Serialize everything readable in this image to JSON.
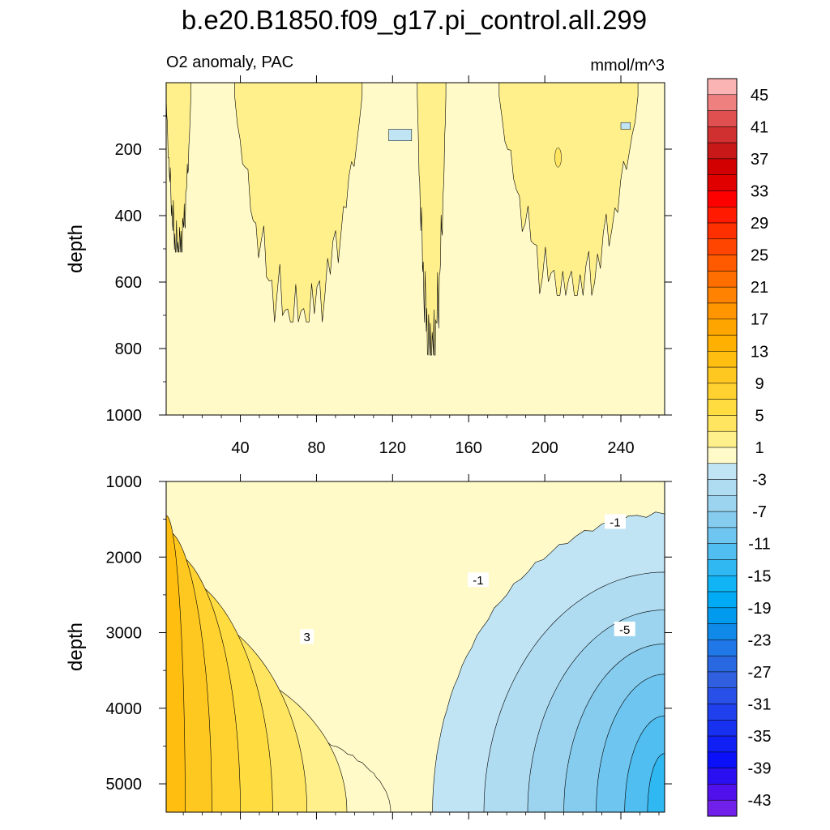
{
  "chart_data": {
    "type": "contour",
    "title": "b.e20.B1850.f09_g17.pi_control.all.299",
    "variable_label": "O2 anomaly, PAC",
    "units_label": "mmol/m^3",
    "colorbar": {
      "tick_labels": [
        "45",
        "41",
        "37",
        "33",
        "29",
        "25",
        "21",
        "17",
        "13",
        "9",
        "5",
        "1",
        "-3",
        "-7",
        "-11",
        "-15",
        "-19",
        "-23",
        "-27",
        "-31",
        "-35",
        "-39",
        "-43"
      ],
      "levels_top_to_bottom": [
        47,
        45,
        43,
        41,
        39,
        37,
        35,
        33,
        31,
        29,
        27,
        25,
        23,
        21,
        19,
        17,
        15,
        13,
        11,
        9,
        7,
        5,
        3,
        1,
        -1,
        -3,
        -5,
        -7,
        -9,
        -11,
        -13,
        -15,
        -17,
        -19,
        -21,
        -23,
        -25,
        -27,
        -29,
        -31,
        -33,
        -35,
        -37,
        -39,
        -41,
        -43,
        -45
      ],
      "colors": [
        "#fbb4b4",
        "#ee8080",
        "#e05050",
        "#d03030",
        "#c81818",
        "#d20000",
        "#e00000",
        "#ff0000",
        "#ff1a00",
        "#ff3000",
        "#ff4500",
        "#ff5a00",
        "#ff6e00",
        "#ff8200",
        "#ff9600",
        "#ffa500",
        "#ffb000",
        "#ffbe10",
        "#ffc820",
        "#ffd230",
        "#ffdc40",
        "#ffe560",
        "#fff08c",
        "#fffac8",
        "#c0e4f4",
        "#b0dcf2",
        "#9cd4f0",
        "#86ccef",
        "#6ec6f0",
        "#50bef0",
        "#30b8f2",
        "#10b4f5",
        "#00aaf5",
        "#009aee",
        "#108ae8",
        "#2078e8",
        "#2868e0",
        "#3060e0",
        "#2850e8",
        "#2040ee",
        "#1830f0",
        "#1020f5",
        "#0a10f8",
        "#2a10f0",
        "#5010ec",
        "#7020e8"
      ]
    },
    "upper_panel": {
      "ylabel": "depth",
      "xlim": [
        1,
        263
      ],
      "ylim": [
        0,
        1000
      ],
      "x_ticks": [
        40,
        80,
        120,
        160,
        200,
        240
      ],
      "y_ticks": [
        200,
        400,
        600,
        800,
        1000
      ]
    },
    "lower_panel": {
      "ylabel": "depth",
      "xlim": [
        1,
        263
      ],
      "ylim": [
        1000,
        5375
      ],
      "y_ticks": [
        1000,
        2000,
        3000,
        4000,
        5000
      ],
      "contour_labels": [
        {
          "text": "3",
          "x": 75,
          "y": 3050
        },
        {
          "text": "-1",
          "x": 165,
          "y": 2300
        },
        {
          "text": "-1",
          "x": 237,
          "y": 1530
        },
        {
          "text": "-5",
          "x": 242,
          "y": 2950
        }
      ],
      "regions": [
        {
          "name": "1 to 3",
          "color": "#fffac8"
        },
        {
          "name": "3 to 5",
          "color": "#fff08c"
        },
        {
          "name": "5 to 7",
          "color": "#ffe560"
        },
        {
          "name": "7 to 9",
          "color": "#ffdc40"
        },
        {
          "name": "9 to 11",
          "color": "#ffd230"
        },
        {
          "name": "11 to 13",
          "color": "#ffc820"
        },
        {
          "name": "13 to 15",
          "color": "#ffbe10"
        },
        {
          "name": "-1 to -3",
          "color": "#c0e4f4"
        },
        {
          "name": "-3 to -5",
          "color": "#b0dcf2"
        },
        {
          "name": "-5 to -7",
          "color": "#9cd4f0"
        },
        {
          "name": "-7 to -9",
          "color": "#86ccef"
        },
        {
          "name": "-9 to -11",
          "color": "#6ec6f0"
        },
        {
          "name": "-11 to -13",
          "color": "#50bef0"
        },
        {
          "name": "-13 to -15",
          "color": "#30b8f2"
        }
      ]
    }
  }
}
